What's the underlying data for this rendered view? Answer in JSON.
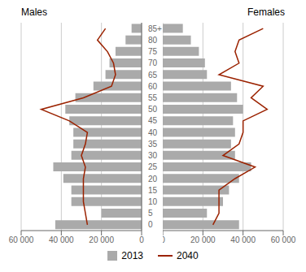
{
  "chart_data": [
    {
      "type": "bar",
      "orientation": "horizontal",
      "title": "Males",
      "categories": [
        "85+",
        "80",
        "75",
        "70",
        "65",
        "60",
        "55",
        "50",
        "45",
        "40",
        "35",
        "30",
        "25",
        "20",
        "15",
        "10",
        "5",
        "0"
      ],
      "series": [
        {
          "name": "2013",
          "type": "bar",
          "color": "#aaaaaa",
          "values": [
            5000,
            8000,
            13000,
            16000,
            18000,
            24000,
            33000,
            38000,
            36000,
            34000,
            34000,
            35000,
            44000,
            39000,
            35000,
            35000,
            20000,
            43000
          ]
        },
        {
          "name": "2040",
          "type": "line",
          "color": "#9b2200",
          "values": [
            18000,
            22000,
            17000,
            14000,
            13000,
            15000,
            29000,
            50000,
            36000,
            27000,
            28000,
            30000,
            28000,
            29000,
            29000,
            29000,
            28000,
            27000
          ]
        }
      ],
      "xlim": [
        60000,
        0
      ],
      "xticks": [
        {
          "value": 60000,
          "label": "60 000"
        },
        {
          "value": 40000,
          "label": "40 000"
        },
        {
          "value": 20000,
          "label": "20 000"
        },
        0
      ],
      "grid": true,
      "legend": "bottom"
    },
    {
      "type": "bar",
      "orientation": "horizontal",
      "title": "Females",
      "categories": [
        "85+",
        "80",
        "75",
        "70",
        "65",
        "60",
        "55",
        "50",
        "45",
        "40",
        "35",
        "30",
        "25",
        "20",
        "15",
        "10",
        "5",
        "0"
      ],
      "series": [
        {
          "name": "2013",
          "type": "bar",
          "color": "#aaaaaa",
          "values": [
            10000,
            14000,
            18000,
            21000,
            22000,
            34000,
            37000,
            40000,
            35000,
            36000,
            34000,
            36000,
            44000,
            38000,
            33000,
            30000,
            22000,
            38000
          ]
        },
        {
          "name": "2040",
          "type": "line",
          "color": "#9b2200",
          "values": [
            50000,
            38000,
            36000,
            38000,
            28000,
            50000,
            44000,
            52000,
            40000,
            40000,
            38000,
            30000,
            46000,
            36000,
            28000,
            28000,
            28000,
            25000
          ]
        }
      ],
      "xlim": [
        0,
        60000
      ],
      "xticks": [
        0,
        {
          "value": 20000,
          "label": "20 000"
        },
        {
          "value": 40000,
          "label": "40 000"
        },
        {
          "value": 60000,
          "label": "60 000"
        }
      ],
      "grid": true,
      "tick_labels": "x"
    }
  ]
}
